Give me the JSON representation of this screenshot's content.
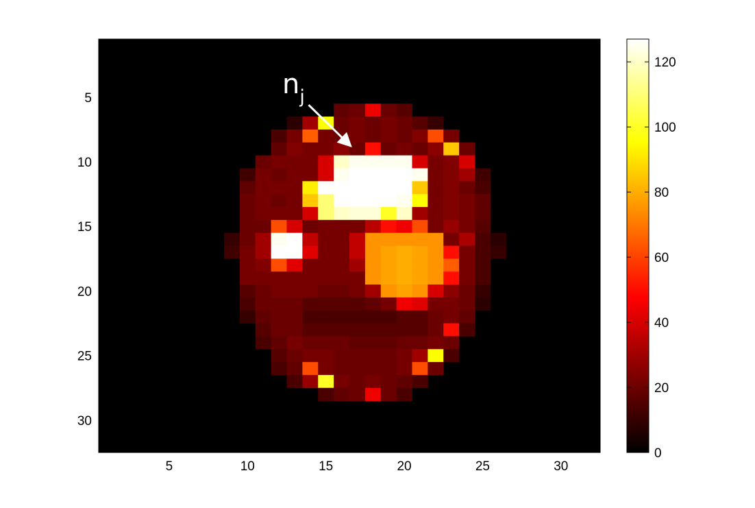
{
  "chart_data": {
    "type": "heatmap",
    "colormap": "hot",
    "grid": false,
    "x_range": [
      0.5,
      32.5
    ],
    "y_range": [
      0.5,
      32.5
    ],
    "y_direction": "reversed",
    "x_ticks": [
      5,
      10,
      15,
      20,
      25,
      30
    ],
    "y_ticks": [
      5,
      10,
      15,
      20,
      25,
      30
    ],
    "colorbar": {
      "range": [
        0,
        127
      ],
      "ticks": [
        0,
        20,
        40,
        60,
        80,
        100,
        120
      ],
      "placement": "right"
    },
    "annotation": {
      "text_base": "n",
      "text_sub": "j",
      "arrow_from": [
        13.9,
        5.6
      ],
      "arrow_to": [
        16.6,
        8.8
      ]
    },
    "values": [
      [
        0,
        0,
        0,
        0,
        0,
        0,
        0,
        0,
        0,
        0,
        0,
        0,
        0,
        0,
        0,
        0,
        0,
        0,
        0,
        0,
        0,
        0,
        0,
        0,
        0,
        0,
        0,
        0,
        0,
        0,
        0,
        0
      ],
      [
        0,
        0,
        0,
        0,
        0,
        0,
        0,
        0,
        0,
        0,
        0,
        0,
        0,
        0,
        0,
        0,
        0,
        0,
        0,
        0,
        0,
        0,
        0,
        0,
        0,
        0,
        0,
        0,
        0,
        0,
        0,
        0
      ],
      [
        0,
        0,
        0,
        0,
        0,
        0,
        0,
        0,
        0,
        0,
        0,
        0,
        0,
        0,
        0,
        0,
        0,
        0,
        0,
        0,
        0,
        0,
        0,
        0,
        0,
        0,
        0,
        0,
        0,
        0,
        0,
        0
      ],
      [
        0,
        0,
        0,
        0,
        0,
        0,
        0,
        0,
        0,
        0,
        0,
        0,
        0,
        0,
        0,
        0,
        0,
        0,
        0,
        0,
        0,
        0,
        0,
        0,
        0,
        0,
        0,
        0,
        0,
        0,
        0,
        0
      ],
      [
        0,
        0,
        0,
        0,
        0,
        0,
        0,
        0,
        0,
        0,
        0,
        0,
        0,
        0,
        0,
        0,
        0,
        0,
        0,
        0,
        0,
        0,
        0,
        0,
        0,
        0,
        0,
        0,
        0,
        0,
        0,
        0
      ],
      [
        0,
        0,
        0,
        0,
        0,
        0,
        0,
        0,
        0,
        0,
        0,
        0,
        0,
        0,
        0,
        18,
        20,
        45,
        20,
        16,
        0,
        0,
        0,
        0,
        0,
        0,
        0,
        0,
        0,
        0,
        0,
        0
      ],
      [
        0,
        0,
        0,
        0,
        0,
        0,
        0,
        0,
        0,
        0,
        0,
        0,
        8,
        30,
        95,
        20,
        22,
        20,
        22,
        20,
        16,
        10,
        0,
        0,
        0,
        0,
        0,
        0,
        0,
        0,
        0,
        0
      ],
      [
        0,
        0,
        0,
        0,
        0,
        0,
        0,
        0,
        0,
        0,
        0,
        14,
        22,
        65,
        22,
        20,
        22,
        20,
        22,
        20,
        24,
        62,
        22,
        0,
        0,
        0,
        0,
        0,
        0,
        0,
        0,
        0
      ],
      [
        0,
        0,
        0,
        0,
        0,
        0,
        0,
        0,
        0,
        0,
        0,
        18,
        24,
        22,
        22,
        26,
        20,
        50,
        20,
        22,
        20,
        26,
        85,
        20,
        0,
        0,
        0,
        0,
        0,
        0,
        0,
        0
      ],
      [
        0,
        0,
        0,
        0,
        0,
        0,
        0,
        0,
        0,
        0,
        20,
        22,
        22,
        22,
        40,
        120,
        125,
        125,
        125,
        125,
        40,
        22,
        24,
        40,
        0,
        0,
        0,
        0,
        0,
        0,
        0,
        0
      ],
      [
        0,
        0,
        0,
        0,
        0,
        0,
        0,
        0,
        0,
        12,
        22,
        20,
        22,
        22,
        40,
        125,
        127,
        127,
        127,
        127,
        125,
        22,
        24,
        30,
        12,
        0,
        0,
        0,
        0,
        0,
        0,
        0
      ],
      [
        0,
        0,
        0,
        0,
        0,
        0,
        0,
        0,
        0,
        18,
        22,
        22,
        22,
        92,
        127,
        127,
        127,
        127,
        127,
        127,
        85,
        22,
        24,
        20,
        14,
        0,
        0,
        0,
        0,
        0,
        0,
        0
      ],
      [
        0,
        0,
        0,
        0,
        0,
        0,
        0,
        0,
        0,
        20,
        22,
        20,
        22,
        85,
        110,
        127,
        127,
        127,
        127,
        125,
        95,
        22,
        24,
        22,
        18,
        0,
        0,
        0,
        0,
        0,
        0,
        0
      ],
      [
        0,
        0,
        0,
        0,
        0,
        0,
        0,
        0,
        0,
        20,
        22,
        22,
        22,
        40,
        110,
        120,
        122,
        122,
        100,
        120,
        30,
        22,
        24,
        22,
        18,
        0,
        0,
        0,
        0,
        0,
        0,
        0
      ],
      [
        0,
        0,
        0,
        0,
        0,
        0,
        0,
        0,
        0,
        20,
        20,
        62,
        40,
        20,
        22,
        22,
        22,
        35,
        50,
        45,
        62,
        22,
        28,
        22,
        16,
        0,
        0,
        0,
        0,
        0,
        0,
        0
      ],
      [
        0,
        0,
        0,
        0,
        0,
        0,
        0,
        0,
        10,
        20,
        30,
        125,
        127,
        36,
        22,
        22,
        36,
        75,
        75,
        75,
        75,
        75,
        22,
        32,
        14,
        8,
        0,
        0,
        0,
        0,
        0,
        0
      ],
      [
        0,
        0,
        0,
        0,
        0,
        0,
        0,
        0,
        12,
        22,
        30,
        127,
        127,
        42,
        22,
        22,
        36,
        75,
        78,
        80,
        78,
        75,
        50,
        22,
        14,
        10,
        0,
        0,
        0,
        0,
        0,
        0
      ],
      [
        0,
        0,
        0,
        0,
        0,
        0,
        0,
        0,
        0,
        22,
        24,
        62,
        42,
        22,
        22,
        22,
        30,
        75,
        78,
        80,
        78,
        75,
        65,
        22,
        14,
        0,
        0,
        0,
        0,
        0,
        0,
        0
      ],
      [
        0,
        0,
        0,
        0,
        0,
        0,
        0,
        0,
        0,
        22,
        22,
        22,
        22,
        22,
        22,
        22,
        22,
        75,
        78,
        80,
        78,
        75,
        50,
        22,
        14,
        0,
        0,
        0,
        0,
        0,
        0,
        0
      ],
      [
        0,
        0,
        0,
        0,
        0,
        0,
        0,
        0,
        0,
        16,
        20,
        22,
        22,
        22,
        20,
        20,
        22,
        30,
        75,
        78,
        75,
        40,
        26,
        20,
        10,
        0,
        0,
        0,
        0,
        0,
        0,
        0
      ],
      [
        0,
        0,
        0,
        0,
        0,
        0,
        0,
        0,
        0,
        14,
        20,
        20,
        20,
        16,
        16,
        16,
        16,
        18,
        22,
        45,
        42,
        22,
        22,
        20,
        8,
        0,
        0,
        0,
        0,
        0,
        0,
        0
      ],
      [
        0,
        0,
        0,
        0,
        0,
        0,
        0,
        0,
        0,
        10,
        18,
        20,
        20,
        14,
        14,
        14,
        14,
        14,
        14,
        16,
        16,
        20,
        22,
        18,
        0,
        0,
        0,
        0,
        0,
        0,
        0,
        0
      ],
      [
        0,
        0,
        0,
        0,
        0,
        0,
        0,
        0,
        0,
        0,
        16,
        20,
        20,
        16,
        16,
        16,
        16,
        16,
        16,
        16,
        16,
        20,
        50,
        14,
        0,
        0,
        0,
        0,
        0,
        0,
        0,
        0
      ],
      [
        0,
        0,
        0,
        0,
        0,
        0,
        0,
        0,
        0,
        0,
        14,
        18,
        22,
        20,
        20,
        20,
        18,
        18,
        18,
        20,
        20,
        22,
        20,
        0,
        0,
        0,
        0,
        0,
        0,
        0,
        0,
        0
      ],
      [
        0,
        0,
        0,
        0,
        0,
        0,
        0,
        0,
        0,
        0,
        0,
        16,
        20,
        22,
        22,
        20,
        20,
        20,
        20,
        22,
        30,
        95,
        14,
        0,
        0,
        0,
        0,
        0,
        0,
        0,
        0,
        0
      ],
      [
        0,
        0,
        0,
        0,
        0,
        0,
        0,
        0,
        0,
        0,
        0,
        14,
        18,
        62,
        22,
        20,
        20,
        20,
        20,
        22,
        62,
        20,
        0,
        0,
        0,
        0,
        0,
        0,
        0,
        0,
        0,
        0
      ],
      [
        0,
        0,
        0,
        0,
        0,
        0,
        0,
        0,
        0,
        0,
        0,
        0,
        14,
        28,
        100,
        22,
        20,
        22,
        20,
        18,
        14,
        0,
        0,
        0,
        0,
        0,
        0,
        0,
        0,
        0,
        0,
        0
      ],
      [
        0,
        0,
        0,
        0,
        0,
        0,
        0,
        0,
        0,
        0,
        0,
        0,
        0,
        0,
        14,
        18,
        20,
        45,
        20,
        14,
        0,
        0,
        0,
        0,
        0,
        0,
        0,
        0,
        0,
        0,
        0,
        0
      ],
      [
        0,
        0,
        0,
        0,
        0,
        0,
        0,
        0,
        0,
        0,
        0,
        0,
        0,
        0,
        0,
        0,
        0,
        0,
        0,
        0,
        0,
        0,
        0,
        0,
        0,
        0,
        0,
        0,
        0,
        0,
        0,
        0
      ],
      [
        0,
        0,
        0,
        0,
        0,
        0,
        0,
        0,
        0,
        0,
        0,
        0,
        0,
        0,
        0,
        0,
        0,
        0,
        0,
        0,
        0,
        0,
        0,
        0,
        0,
        0,
        0,
        0,
        0,
        0,
        0,
        0
      ],
      [
        0,
        0,
        0,
        0,
        0,
        0,
        0,
        0,
        0,
        0,
        0,
        0,
        0,
        0,
        0,
        0,
        0,
        0,
        0,
        0,
        0,
        0,
        0,
        0,
        0,
        0,
        0,
        0,
        0,
        0,
        0,
        0
      ],
      [
        0,
        0,
        0,
        0,
        0,
        0,
        0,
        0,
        0,
        0,
        0,
        0,
        0,
        0,
        0,
        0,
        0,
        0,
        0,
        0,
        0,
        0,
        0,
        0,
        0,
        0,
        0,
        0,
        0,
        0,
        0,
        0
      ]
    ]
  }
}
